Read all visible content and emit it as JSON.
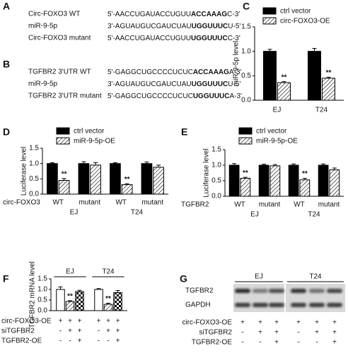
{
  "panel_labels": [
    "A",
    "B",
    "C",
    "D",
    "E",
    "F",
    "G"
  ],
  "sequences_a": [
    {
      "name": "Circ-FOXO3 WT",
      "seq": [
        "5'-AACCUGAUACCUGUU",
        "ACCAAAG",
        "C-3'"
      ]
    },
    {
      "name": "miR-9-5p",
      "seq": [
        "3'-AGUAUGUCGAUCUAU",
        "UGGUUUC",
        "U-5'"
      ]
    },
    {
      "name": "Circ-FOXO3 mutant",
      "seq": [
        "5'-AACCUGAUACCUGUU",
        "UGGUUUC",
        "C-3'"
      ]
    }
  ],
  "sequences_b": [
    {
      "name": "TGFBR2 3'UTR WT",
      "seq": [
        "5'-GAGGCUGCCCCUCUC",
        "ACCAAAG",
        "A-3'"
      ]
    },
    {
      "name": "miR-9-5p",
      "seq": [
        "3'-AGUAUGUCGAUCUAU",
        "UGGUUUC",
        "U-5'"
      ]
    },
    {
      "name": "TGFBR2 3'UTR mutant",
      "seq": [
        "5'-GAGGCUGCCCCUCUC",
        "UGGUUUC",
        "A-3'"
      ]
    }
  ],
  "chart_data": [
    {
      "type": "bar",
      "ylabel": "miR-9-5p level",
      "categories": [
        "EJ",
        "T24"
      ],
      "series": [
        {
          "name": "ctrl vector",
          "color": "#000000",
          "pattern": "solid",
          "values": [
            1.0,
            1.0
          ],
          "errors": [
            0.04,
            0.06
          ]
        },
        {
          "name": "circ-FOXO3-OE",
          "color": "#000000",
          "pattern": "hatch",
          "values": [
            0.36,
            0.45
          ],
          "errors": [
            0.02,
            0.02
          ],
          "significance": [
            "**",
            "**"
          ]
        }
      ],
      "ylim": [
        0,
        1.5
      ],
      "yticks": [
        {
          "value": 0,
          "label": "0.0"
        },
        {
          "value": 0.5,
          "label": "0.5"
        },
        {
          "value": 1.0,
          "label": "1.0"
        },
        {
          "value": 1.5,
          "label": "1.5"
        }
      ],
      "legend": "top"
    },
    {
      "type": "bar",
      "ylabel": "Luciferase level",
      "row_label": "circ-FOXO3",
      "categories": [
        "WT",
        "mutant",
        "WT",
        "mutant"
      ],
      "groups": [
        "EJ",
        "T24"
      ],
      "series": [
        {
          "name": "ctrl vector",
          "color": "#000000",
          "pattern": "solid",
          "values": [
            1.0,
            1.0,
            1.0,
            1.0
          ],
          "errors": [
            0.03,
            0.06,
            0.03,
            0.05
          ]
        },
        {
          "name": "miR-9-5p-OE",
          "color": "#000000",
          "pattern": "hatch",
          "values": [
            0.45,
            0.95,
            0.31,
            0.88
          ],
          "errors": [
            0.06,
            0.08,
            0.03,
            0.07
          ],
          "significance": [
            "**",
            null,
            "**",
            null
          ]
        }
      ],
      "ylim": [
        0,
        1.5
      ],
      "yticks": [
        {
          "value": 0,
          "label": "0.0"
        },
        {
          "value": 0.5,
          "label": "0.5"
        },
        {
          "value": 1.0,
          "label": "1.0"
        },
        {
          "value": 1.5,
          "label": "1.5"
        }
      ],
      "legend": "top"
    },
    {
      "type": "bar",
      "ylabel": "Luciferase level",
      "row_label": "TGFBR2",
      "categories": [
        "WT",
        "mutant",
        "WT",
        "mutant"
      ],
      "groups": [
        "EJ",
        "T24"
      ],
      "series": [
        {
          "name": "ctrl vector",
          "color": "#000000",
          "pattern": "solid",
          "values": [
            1.0,
            1.0,
            1.0,
            1.0
          ],
          "errors": [
            0.05,
            0.03,
            0.04,
            0.04
          ]
        },
        {
          "name": "miR-9-5p-OE",
          "color": "#000000",
          "pattern": "hatch",
          "values": [
            0.58,
            0.98,
            0.53,
            0.85
          ],
          "errors": [
            0.03,
            0.04,
            0.05,
            0.06
          ],
          "significance": [
            "**",
            null,
            "**",
            null
          ]
        }
      ],
      "ylim": [
        0,
        1.5
      ],
      "yticks": [
        {
          "value": 0,
          "label": "0.0"
        },
        {
          "value": 0.5,
          "label": "0.5"
        },
        {
          "value": 1.0,
          "label": "1.0"
        },
        {
          "value": 1.5,
          "label": "1.5"
        }
      ],
      "legend": "top"
    },
    {
      "type": "bar",
      "ylabel": "TGFBR2 mRNA level",
      "categories": [
        "EJ",
        "T24"
      ],
      "category_position": "top",
      "series": [
        {
          "color": "#000000",
          "pattern": "open",
          "values": [
            1.0,
            1.0
          ],
          "errors": [
            0.12,
            0.04
          ]
        },
        {
          "color": "#000000",
          "pattern": "hatch",
          "values": [
            0.43,
            0.3
          ],
          "errors": [
            0.04,
            0.05
          ],
          "significance": [
            "**",
            "**"
          ]
        },
        {
          "color": "#000000",
          "pattern": "check",
          "values": [
            0.9,
            0.85
          ],
          "errors": [
            0.06,
            0.1
          ]
        }
      ],
      "ylim": [
        0,
        1.5
      ],
      "yticks": [
        {
          "value": 0,
          "label": "0.0"
        },
        {
          "value": 0.5,
          "label": "0.5"
        },
        {
          "value": 1.0,
          "label": "1.0"
        },
        {
          "value": 1.5,
          "label": "1.5"
        }
      ],
      "conditions": [
        {
          "label": "circ-FOXO3-OE",
          "signs": [
            "+",
            "+",
            "+",
            "+",
            "+",
            "+"
          ]
        },
        {
          "label": "siTGFBR2",
          "signs": [
            "-",
            "+",
            "+",
            "-",
            "+",
            "+"
          ]
        },
        {
          "label": "TGFBR2-OE",
          "signs": [
            "-",
            "-",
            "+",
            "-",
            "-",
            "+"
          ]
        }
      ]
    }
  ],
  "blot": {
    "groups": [
      "EJ",
      "T24"
    ],
    "proteins": [
      "TGFBR2",
      "GAPDH"
    ],
    "rows": [
      {
        "label": "circ-FOXO3-OE",
        "signs": [
          "+",
          "+",
          "+",
          "+",
          "+",
          "+"
        ]
      },
      {
        "label": "siTGFBR2",
        "signs": [
          "-",
          "+",
          "+",
          "-",
          "+",
          "+"
        ]
      },
      {
        "label": "TGFBR2-OE",
        "signs": [
          "-",
          "-",
          "+",
          "-",
          "-",
          "+"
        ]
      }
    ]
  }
}
